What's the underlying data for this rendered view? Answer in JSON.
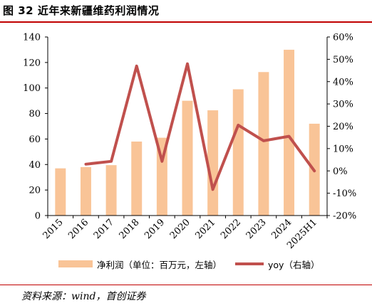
{
  "header": {
    "title": "图 32  近年来新疆维药利润情况"
  },
  "footer": {
    "source": "资料来源：wind，首创证券"
  },
  "colors": {
    "bar": "#f9c497",
    "line": "#c0504d",
    "rule": "#c00000",
    "axis": "#000000"
  },
  "chart_data": {
    "type": "bar+line",
    "categories": [
      "2015",
      "2016",
      "2017",
      "2018",
      "2019",
      "2020",
      "2021",
      "2022",
      "2023",
      "2024",
      "2025H1"
    ],
    "series": [
      {
        "name": "净利润（单位：百万元，左轴）",
        "type": "bar",
        "axis": "left",
        "values": [
          37,
          38,
          39.5,
          58,
          61,
          90,
          82.5,
          99,
          112.5,
          130,
          72
        ]
      },
      {
        "name": "yoy（右轴）",
        "type": "line",
        "axis": "right",
        "values": [
          null,
          3,
          4.3,
          47,
          4.3,
          48,
          -8.3,
          20.5,
          13.5,
          15.5,
          0
        ]
      }
    ],
    "y_left": {
      "min": 0,
      "max": 140,
      "ticks": [
        "0",
        "20",
        "40",
        "60",
        "80",
        "100",
        "120",
        "140"
      ]
    },
    "y_right": {
      "min": -20,
      "max": 60,
      "ticks": [
        "-20%",
        "-10%",
        "0%",
        "10%",
        "20%",
        "30%",
        "40%",
        "50%",
        "60%"
      ]
    },
    "grid": false,
    "legend_position": "bottom"
  }
}
